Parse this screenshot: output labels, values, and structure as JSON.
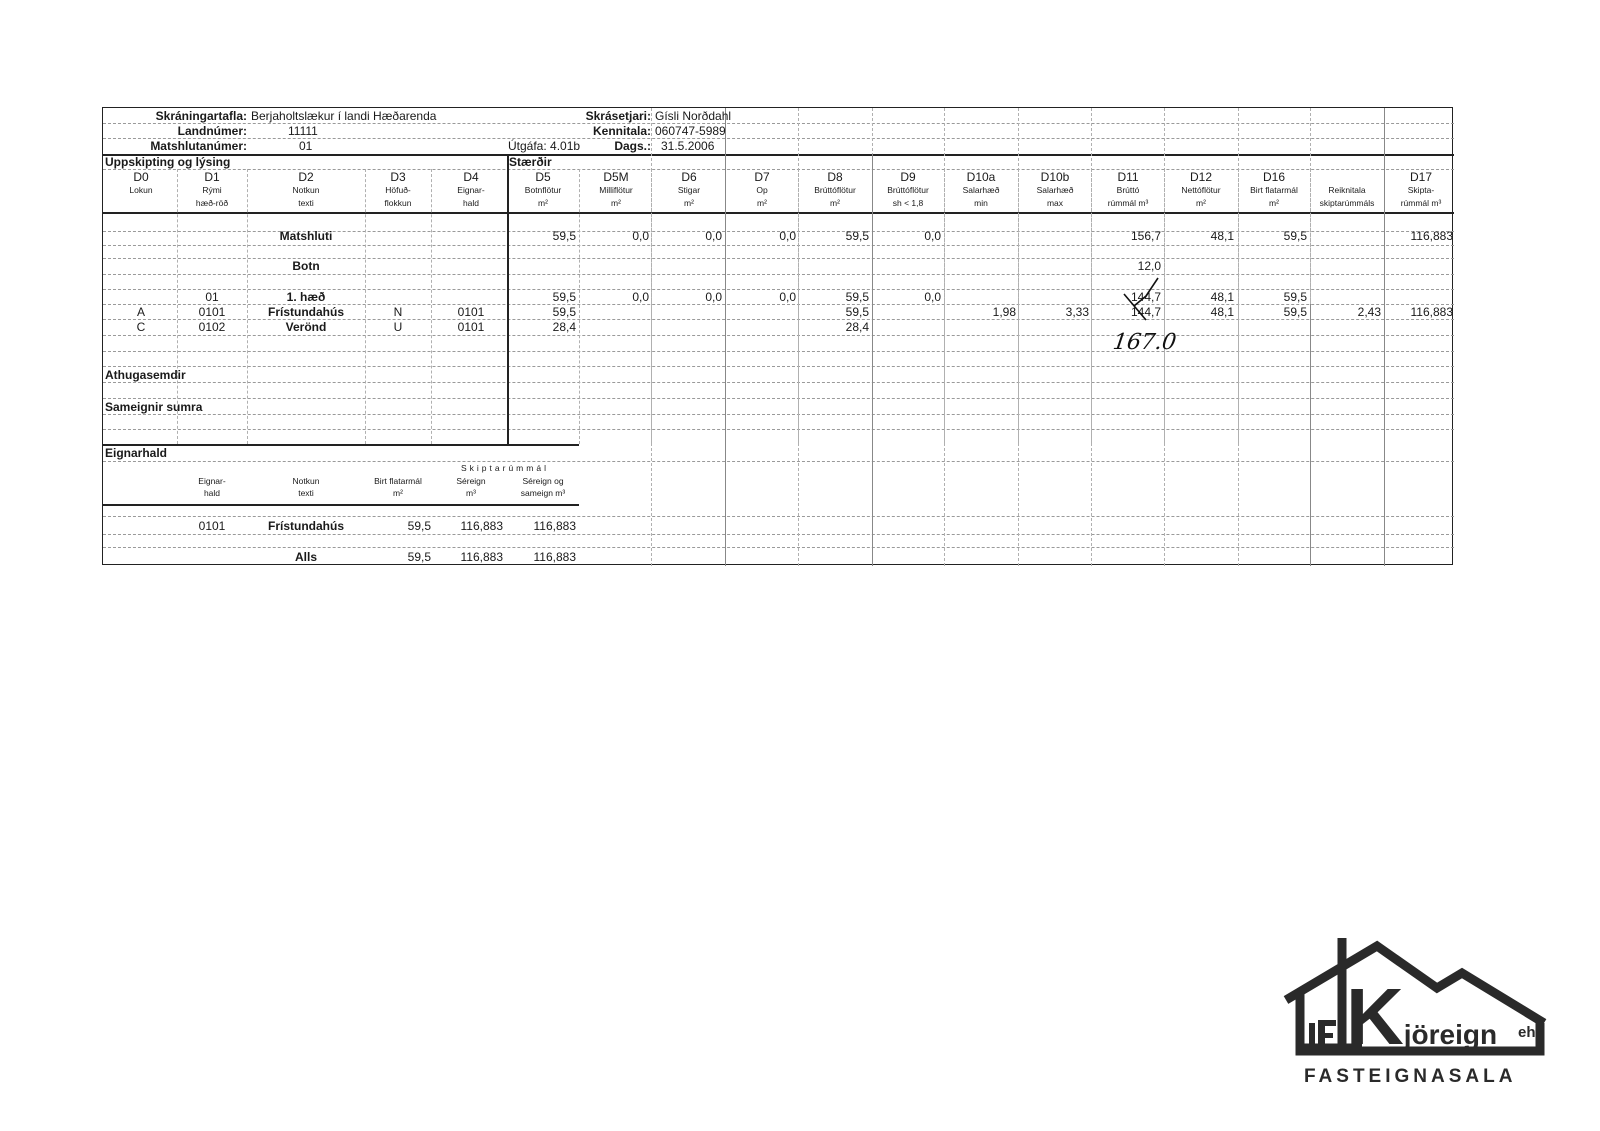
{
  "header": {
    "title_label": "Skráningartafla:",
    "title_value": "Berjaholtslækur í landi Hæðarenda",
    "landnumer_label": "Landnúmer:",
    "landnumer_value": "11111",
    "matshlutanumer_label": "Matshlutanúmer:",
    "matshlutanumer_value": "01",
    "skrasetjari_label": "Skrásetjari:",
    "skrasetjari_value": "Gísli Norðdahl",
    "kennitala_label": "Kennitala:",
    "kennitala_value": "060747-5989",
    "utgafa": "Útgáfa: 4.01b",
    "dags_label": "Dags.:",
    "dags_value": "31.5.2006"
  },
  "sections": {
    "uppskipting": "Uppskipting og lýsing",
    "staerdir": "Stærðir",
    "athugasemdir": "Athugasemdir",
    "sameignir": "Sameignir sumra",
    "eignarhald": "Eignarhald"
  },
  "columns": [
    {
      "code": "D0",
      "sub1": "Lokun",
      "sub2": ""
    },
    {
      "code": "D1",
      "sub1": "Rými",
      "sub2": "hæð-röð"
    },
    {
      "code": "D2",
      "sub1": "Notkun",
      "sub2": "texti"
    },
    {
      "code": "D3",
      "sub1": "Höfuð-",
      "sub2": "flokkun"
    },
    {
      "code": "D4",
      "sub1": "Eignar-",
      "sub2": "hald"
    },
    {
      "code": "D5",
      "sub1": "Botnflötur",
      "sub2": "m²"
    },
    {
      "code": "D5M",
      "sub1": "Milliflötur",
      "sub2": "m²"
    },
    {
      "code": "D6",
      "sub1": "Stigar",
      "sub2": "m²"
    },
    {
      "code": "D7",
      "sub1": "Op",
      "sub2": "m²"
    },
    {
      "code": "D8",
      "sub1": "Brúttóflötur",
      "sub2": "m²"
    },
    {
      "code": "D9",
      "sub1": "Brúttóflötur",
      "sub2": "sh < 1,8"
    },
    {
      "code": "D10a",
      "sub1": "Salarhæð",
      "sub2": "min"
    },
    {
      "code": "D10b",
      "sub1": "Salarhæð",
      "sub2": "max"
    },
    {
      "code": "D11",
      "sub1": "Brúttó",
      "sub2": "rúmmál m³"
    },
    {
      "code": "D12",
      "sub1": "Nettóflötur",
      "sub2": "m²"
    },
    {
      "code": "D16",
      "sub1": "Birt flatarmál",
      "sub2": "m²"
    },
    {
      "code": "",
      "sub1": "Reiknitala",
      "sub2": "skiptarúmmáls"
    },
    {
      "code": "D17",
      "sub1": "Skipta-",
      "sub2": "rúmmál m³"
    }
  ],
  "rows": [
    {
      "name": "matshluti",
      "cells": [
        "",
        "",
        "Matshluti",
        "",
        "",
        "59,5",
        "0,0",
        "0,0",
        "0,0",
        "59,5",
        "0,0",
        "",
        "",
        "156,7",
        "48,1",
        "59,5",
        "",
        "116,883"
      ]
    },
    {
      "name": "botn",
      "cells": [
        "",
        "",
        "Botn",
        "",
        "",
        "",
        "",
        "",
        "",
        "",
        "",
        "",
        "",
        "12,0",
        "",
        "",
        "",
        ""
      ]
    },
    {
      "name": "haed-1",
      "cells": [
        "",
        "01",
        "1. hæð",
        "",
        "",
        "59,5",
        "0,0",
        "0,0",
        "0,0",
        "59,5",
        "0,0",
        "",
        "",
        "144,7",
        "48,1",
        "59,5",
        "",
        ""
      ]
    },
    {
      "name": "fristundahus",
      "cells": [
        "A",
        "0101",
        "Frístundahús",
        "N",
        "0101",
        "59,5",
        "",
        "",
        "",
        "59,5",
        "",
        "1,98",
        "3,33",
        "144,7",
        "48,1",
        "59,5",
        "2,43",
        "116,883"
      ]
    },
    {
      "name": "verond",
      "cells": [
        "C",
        "0102",
        "Verönd",
        "U",
        "0101",
        "28,4",
        "",
        "",
        "",
        "28,4",
        "",
        "",
        "",
        "",
        "",
        "",
        "",
        ""
      ]
    }
  ],
  "handwritten_correction": "167.0",
  "eignarhald": {
    "group_header": "Skiptarúmmál",
    "columns": [
      {
        "sub1": "Eignar-",
        "sub2": "hald"
      },
      {
        "sub1": "Notkun",
        "sub2": "texti"
      },
      {
        "sub1": "Birt flatarmál",
        "sub2": "m²"
      },
      {
        "sub1": "Séreign",
        "sub2": "m³"
      },
      {
        "sub1": "Séreign og",
        "sub2": "sameign m³"
      }
    ],
    "rows": [
      {
        "cells": [
          "0101",
          "Frístundahús",
          "59,5",
          "116,883",
          "116,883"
        ]
      }
    ],
    "total": {
      "label": "Alls",
      "cells": [
        "59,5",
        "116,883",
        "116,883"
      ]
    }
  },
  "logo": {
    "brand": "Kjöreign",
    "suffix": "ehf",
    "tagline": "FASTEIGNASALA",
    "mark": "rF",
    "color": "#2a2a2a"
  }
}
